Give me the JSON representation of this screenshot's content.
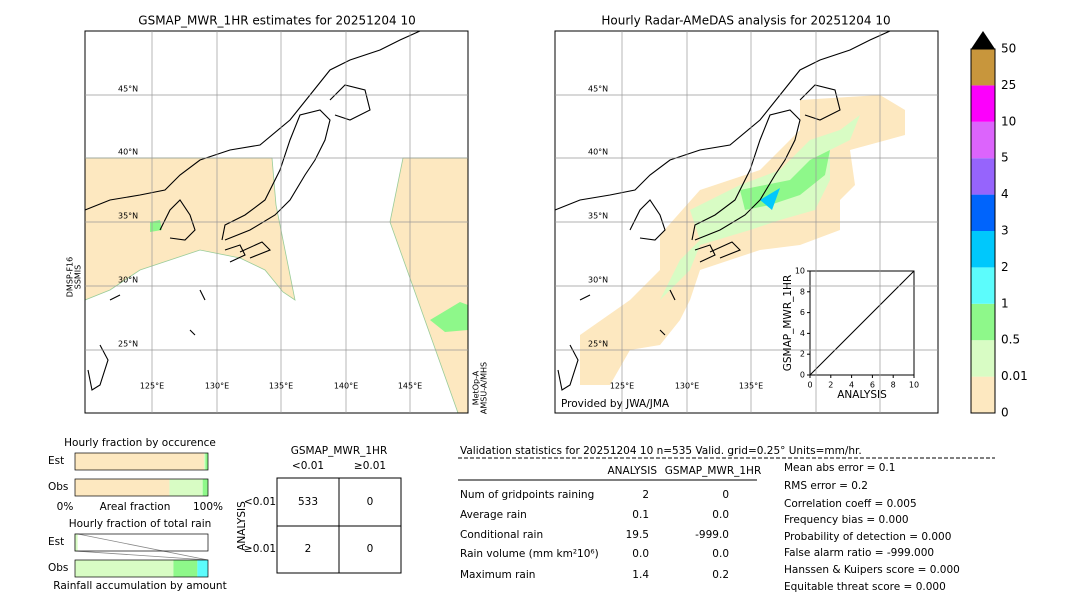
{
  "left_map": {
    "title": "GSMAP_MWR_1HR estimates for 20251204 10",
    "lat_labels": [
      "45°N",
      "40°N",
      "35°N",
      "30°N",
      "25°N"
    ],
    "lon_labels": [
      "125°E",
      "130°E",
      "135°E",
      "140°E",
      "145°E"
    ],
    "left_note": [
      "DMSP-F16",
      "SSMIS"
    ],
    "right_note": [
      "MetOp-A",
      "AMSU-A/MHS"
    ]
  },
  "right_map": {
    "title": "Hourly Radar-AMeDAS analysis for 20251204 10",
    "lat_labels": [
      "45°N",
      "40°N",
      "35°N",
      "30°N",
      "25°N"
    ],
    "lon_labels": [
      "125°E",
      "130°E",
      "135°E"
    ],
    "credit": "Provided by JWA/JMA"
  },
  "scatter": {
    "x_label": "ANALYSIS",
    "y_label": "GSMAP_MWR_1HR",
    "xlim": [
      0,
      10
    ],
    "ylim": [
      0,
      10
    ],
    "xticks": [
      0,
      2,
      4,
      6,
      8,
      10
    ],
    "yticks": [
      0,
      2,
      4,
      6,
      8,
      10
    ]
  },
  "colorbar": {
    "levels": [
      0,
      0.01,
      0.5,
      1,
      2,
      3,
      4,
      5,
      10,
      25,
      50
    ],
    "colors": [
      "#fde8c0",
      "#d8fcc4",
      "#8ef88a",
      "#5cfcfc",
      "#00c8fc",
      "#0064fc",
      "#9664fc",
      "#dc64fc",
      "#fc00fc",
      "#c8963c"
    ]
  },
  "occurrence": {
    "title": "Hourly fraction by occurence",
    "row_labels": [
      "Est",
      "Obs"
    ],
    "axis_labels": [
      "0%",
      "Areal fraction",
      "100%"
    ],
    "colors": [
      "#fde8c0",
      "#d8fcc4",
      "#8ef88a"
    ],
    "est": [
      0.97,
      0.01,
      0.02
    ],
    "obs": [
      0.71,
      0.25,
      0.04
    ]
  },
  "total_rain": {
    "title": "Hourly fraction of total rain",
    "row_labels": [
      "Est",
      "Obs"
    ],
    "footer": "Rainfall accumulation by amount",
    "colors": [
      "#d8fcc4",
      "#8ef88a",
      "#5cfcfc"
    ],
    "est": [
      0.02,
      0,
      0
    ],
    "obs": [
      0.74,
      0.18,
      0.08
    ]
  },
  "contingency": {
    "title": "GSMAP_MWR_1HR",
    "col_headers": [
      "<0.01",
      "≥0.01"
    ],
    "row_axis": "ANALYSIS",
    "row_headers": [
      "<0.01",
      "≥0.01"
    ],
    "cells": [
      [
        "533",
        "0"
      ],
      [
        "2",
        "0"
      ]
    ]
  },
  "validation": {
    "header": "Validation statistics for 20251204 10  n=535 Valid. grid=0.25° Units=mm/hr.",
    "columns": [
      "ANALYSIS",
      "GSMAP_MWR_1HR"
    ],
    "rows": [
      [
        "Num of gridpoints raining",
        "2",
        "0"
      ],
      [
        "Average rain",
        "0.1",
        "0.0"
      ],
      [
        "Conditional rain",
        "19.5",
        "-999.0"
      ],
      [
        "Rain volume (mm km²10⁶)",
        "0.0",
        "0.0"
      ],
      [
        "Maximum rain",
        "1.4",
        "0.2"
      ]
    ],
    "scores": [
      "Mean abs error =    0.1",
      "RMS error =    0.2",
      "Correlation coeff =  0.005",
      "Frequency bias =  0.000",
      "Probability of detection =  0.000",
      "False alarm ratio = -999.000",
      "Hanssen & Kuipers score =  0.000",
      "Equitable threat score =  0.000"
    ]
  }
}
